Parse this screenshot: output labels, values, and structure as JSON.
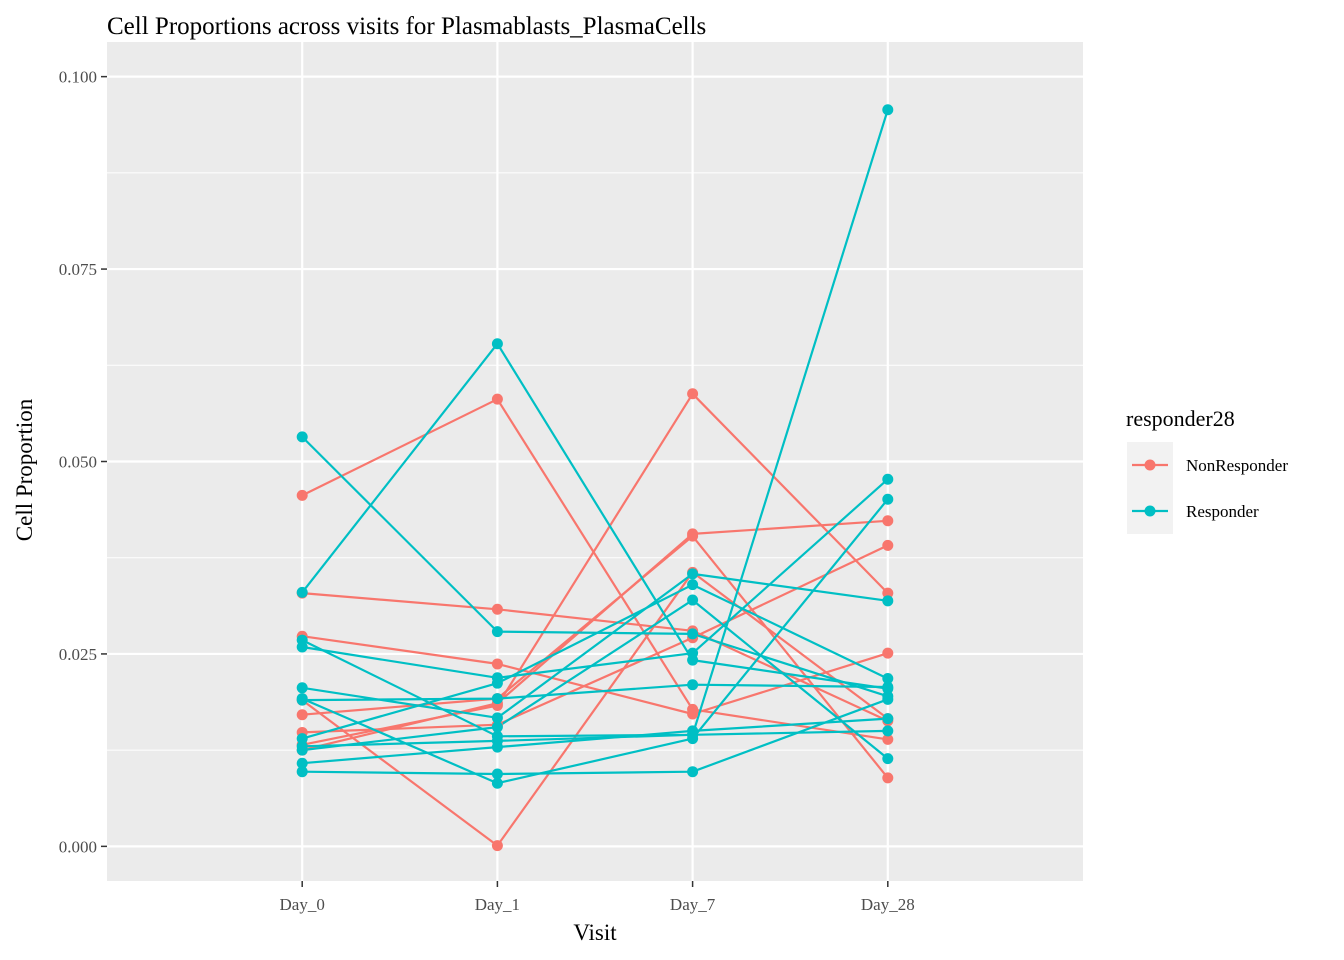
{
  "chart_data": {
    "type": "line",
    "title": "Cell Proportions across visits for Plasmablasts_PlasmaCells",
    "xlabel": "Visit",
    "ylabel": "Cell Proportion",
    "categories": [
      "Day_0",
      "Day_1",
      "Day_7",
      "Day_28"
    ],
    "y_ticks": [
      "0.000",
      "0.025",
      "0.050",
      "0.075",
      "0.100"
    ],
    "ylim": [
      -0.0045,
      0.1045
    ],
    "grid": true,
    "legend": {
      "title": "responder28",
      "placement": "right",
      "entries": [
        {
          "name": "NonResponder",
          "color": "#F8766D"
        },
        {
          "name": "Responder",
          "color": "#00BFC4"
        }
      ]
    },
    "series": [
      {
        "group": "NonResponder",
        "values": [
          0.0456,
          0.0581,
          0.0178,
          0.0139
        ]
      },
      {
        "group": "NonResponder",
        "values": [
          0.0329,
          0.0308,
          0.028,
          0.0163
        ]
      },
      {
        "group": "NonResponder",
        "values": [
          0.0273,
          0.0237,
          0.0172,
          0.0251
        ]
      },
      {
        "group": "NonResponder",
        "values": [
          0.019,
          0.0001,
          0.0356,
          0.0166
        ]
      },
      {
        "group": "NonResponder",
        "values": [
          0.0171,
          0.0192,
          0.0403,
          0.0089
        ]
      },
      {
        "group": "NonResponder",
        "values": [
          0.0148,
          0.0158,
          0.0271,
          0.0391
        ]
      },
      {
        "group": "NonResponder",
        "values": [
          0.0132,
          0.0183,
          0.0588,
          0.0329
        ]
      },
      {
        "group": "NonResponder",
        "values": [
          0.0125,
          0.0186,
          0.0406,
          0.0423
        ]
      },
      {
        "group": "Responder",
        "values": [
          0.0532,
          0.0279,
          0.0276,
          0.0195
        ]
      },
      {
        "group": "Responder",
        "values": [
          0.033,
          0.0653,
          0.0242,
          0.0205
        ]
      },
      {
        "group": "Responder",
        "values": [
          0.0268,
          0.0143,
          0.0145,
          0.0957
        ]
      },
      {
        "group": "Responder",
        "values": [
          0.0259,
          0.0219,
          0.0251,
          0.0477
        ]
      },
      {
        "group": "Responder",
        "values": [
          0.0206,
          0.0167,
          0.0354,
          0.0319
        ]
      },
      {
        "group": "Responder",
        "values": [
          0.019,
          0.0192,
          0.021,
          0.0207
        ]
      },
      {
        "group": "Responder",
        "values": [
          0.014,
          0.0212,
          0.034,
          0.0218
        ]
      },
      {
        "group": "Responder",
        "values": [
          0.013,
          0.0137,
          0.0145,
          0.015
        ]
      },
      {
        "group": "Responder",
        "values": [
          0.0125,
          0.0155,
          0.032,
          0.0114
        ]
      },
      {
        "group": "Responder",
        "values": [
          0.0108,
          0.0129,
          0.015,
          0.0166
        ]
      },
      {
        "group": "Responder",
        "values": [
          0.0097,
          0.0094,
          0.0097,
          0.0191
        ]
      },
      {
        "group": "Responder",
        "values": [
          0.0192,
          0.0082,
          0.014,
          0.0451
        ]
      }
    ]
  }
}
